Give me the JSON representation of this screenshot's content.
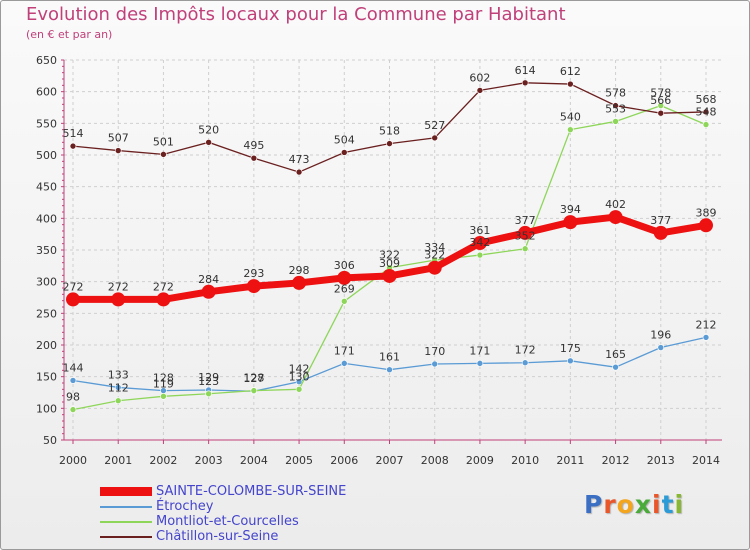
{
  "chart": {
    "title": "Evolution des Impôts locaux pour la Commune par Habitant",
    "subtitle": "(en € et par an)"
  },
  "logo": {
    "text": "Proxiti",
    "colors": [
      "#3a6fc4",
      "#e8562a",
      "#f2a51d",
      "#4aaa3a",
      "#e8562a",
      "#2d9bd6",
      "#88b832"
    ]
  },
  "chart_data": {
    "type": "line",
    "title": "Evolution des Impôts locaux pour la Commune par Habitant",
    "subtitle": "(en € et par an)",
    "xlabel": "",
    "ylabel": "",
    "x": [
      "2000",
      "2001",
      "2002",
      "2003",
      "2004",
      "2005",
      "2006",
      "2007",
      "2008",
      "2009",
      "2010",
      "2011",
      "2012",
      "2013",
      "2014"
    ],
    "ylim": [
      50,
      650
    ],
    "yticks": [
      50,
      100,
      150,
      200,
      250,
      300,
      350,
      400,
      450,
      500,
      550,
      600,
      650
    ],
    "grid": true,
    "legend_position": "bottom-left",
    "series": [
      {
        "name": "SAINTE-COLOMBE-SUR-SEINE",
        "color": "#ee1111",
        "emphasis": true,
        "values": [
          272,
          272,
          272,
          284,
          293,
          298,
          306,
          309,
          322,
          361,
          377,
          394,
          402,
          377,
          389
        ]
      },
      {
        "name": "Étrochey",
        "color": "#5a9bd5",
        "emphasis": false,
        "values": [
          144,
          133,
          128,
          129,
          127,
          142,
          171,
          161,
          170,
          171,
          172,
          175,
          165,
          196,
          212
        ]
      },
      {
        "name": "Montliot-et-Courcelles",
        "color": "#8ed65a",
        "emphasis": false,
        "values": [
          98,
          112,
          119,
          123,
          128,
          130,
          269,
          322,
          334,
          342,
          352,
          540,
          553,
          578,
          548
        ]
      },
      {
        "name": "Châtillon-sur-Seine",
        "color": "#6b2020",
        "emphasis": false,
        "values": [
          514,
          507,
          501,
          520,
          495,
          473,
          504,
          518,
          527,
          602,
          614,
          612,
          578,
          566,
          568
        ]
      }
    ]
  }
}
